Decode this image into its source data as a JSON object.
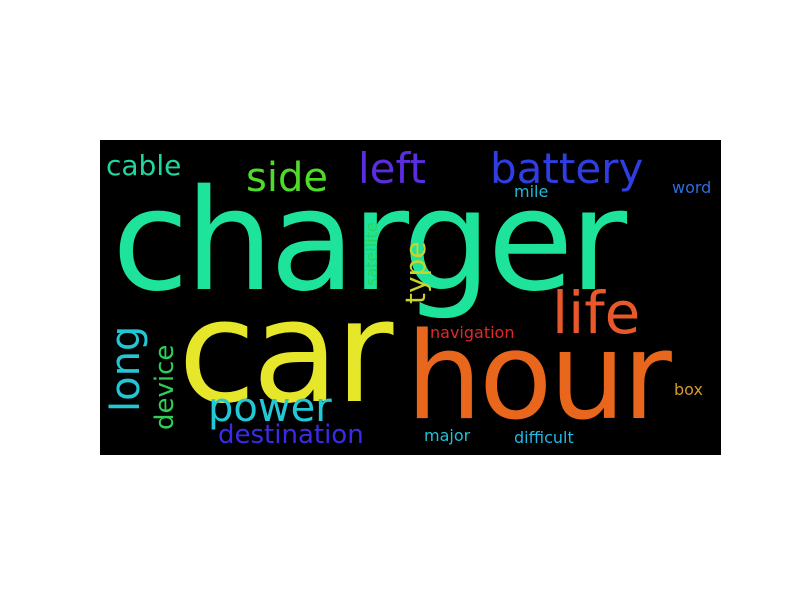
{
  "words": {
    "charger": {
      "text": "charger",
      "color": "#1ee39b"
    },
    "car": {
      "text": "car",
      "color": "#e6e62a"
    },
    "hour": {
      "text": "hour",
      "color": "#e8671d"
    },
    "life": {
      "text": "life",
      "color": "#e9582a"
    },
    "left": {
      "text": "left",
      "color": "#5a2de0"
    },
    "battery": {
      "text": "battery",
      "color": "#2f3de2"
    },
    "side": {
      "text": "side",
      "color": "#4fdb2a"
    },
    "cable": {
      "text": "cable",
      "color": "#20d69d"
    },
    "long": {
      "text": "long",
      "color": "#22c7d3"
    },
    "device": {
      "text": "device",
      "color": "#2fcf57"
    },
    "power": {
      "text": "power",
      "color": "#22c8d6"
    },
    "destination": {
      "text": "destination",
      "color": "#3b2ae6"
    },
    "type": {
      "text": "type",
      "color": "#c9d42a"
    },
    "satellite": {
      "text": "satellite",
      "color": "#2ad45a"
    },
    "mile": {
      "text": "mile",
      "color": "#22b9d6"
    },
    "word": {
      "text": "word",
      "color": "#2f6ce0"
    },
    "navigation": {
      "text": "navigation",
      "color": "#e0282a"
    },
    "box": {
      "text": "box",
      "color": "#d59a2a"
    },
    "major": {
      "text": "major",
      "color": "#22c0d7"
    },
    "difficult": {
      "text": "difficult",
      "color": "#25b6e3"
    }
  }
}
